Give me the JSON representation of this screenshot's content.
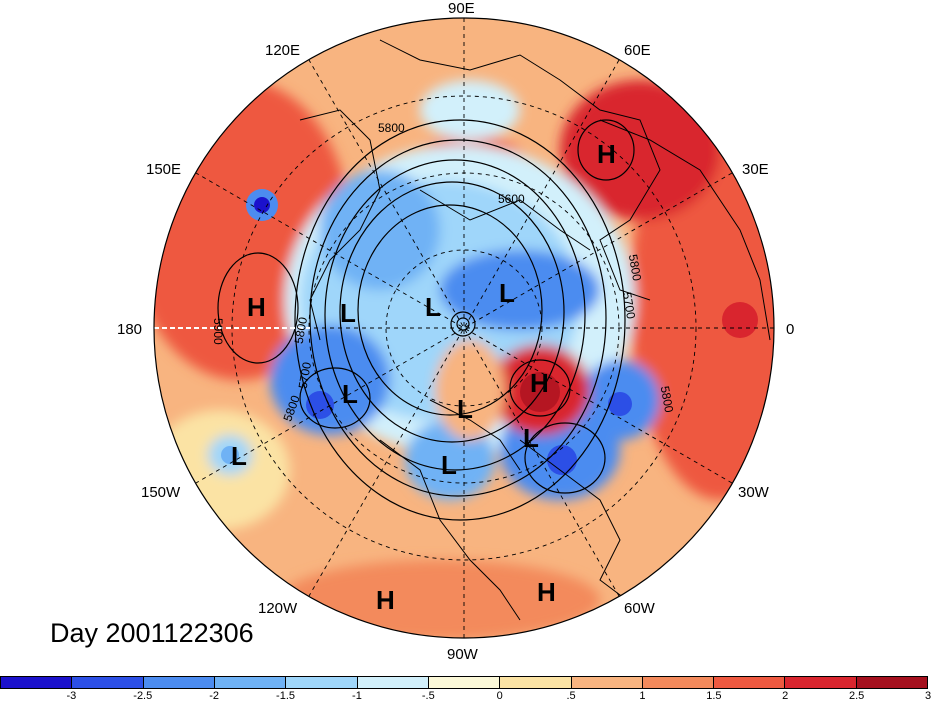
{
  "title": "Day 2001122306",
  "longitude_labels": [
    {
      "id": "90e",
      "text": "90E"
    },
    {
      "id": "60e",
      "text": "60E"
    },
    {
      "id": "30e",
      "text": "30E"
    },
    {
      "id": "0",
      "text": "0"
    },
    {
      "id": "30w",
      "text": "30W"
    },
    {
      "id": "60w",
      "text": "60W"
    },
    {
      "id": "90w",
      "text": "90W"
    },
    {
      "id": "120w",
      "text": "120W"
    },
    {
      "id": "150w",
      "text": "150W"
    },
    {
      "id": "180",
      "text": "180"
    },
    {
      "id": "150e",
      "text": "150E"
    },
    {
      "id": "120e",
      "text": "120E"
    }
  ],
  "pressure_centers": {
    "high_label": "H",
    "low_label": "L"
  },
  "contour_labels": {
    "c5600": "5600",
    "c5700": "5700",
    "c5800": "5800",
    "c5900": "5900"
  },
  "colorbar": {
    "colors": [
      "#1b11cc",
      "#2c4fe6",
      "#4c8cf0",
      "#6fb2f5",
      "#9fd6fa",
      "#d2f0fb",
      "#fbf8d8",
      "#fbe3a4",
      "#f8b480",
      "#f38a5c",
      "#ee5940",
      "#d9252e",
      "#a5101e"
    ],
    "ticks": [
      "-3",
      "-2.5",
      "-2",
      "-1.5",
      "-1",
      "-.5",
      "0",
      ".5",
      "1",
      "1.5",
      "2",
      "2.5",
      "3"
    ]
  }
}
